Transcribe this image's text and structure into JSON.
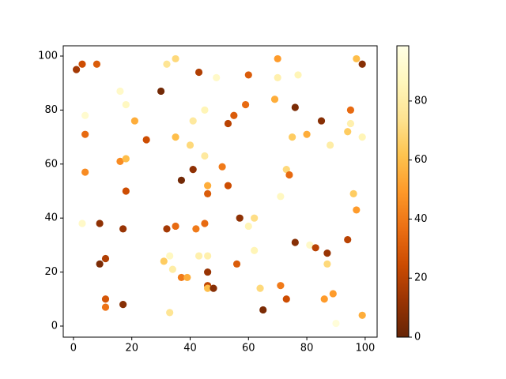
{
  "chart_data": {
    "type": "scatter",
    "x": [
      1,
      3,
      8,
      3,
      4,
      4,
      4,
      9,
      9,
      11,
      11,
      11,
      16,
      16,
      18,
      18,
      18,
      17,
      17,
      21,
      25,
      30,
      31,
      32,
      32,
      33,
      33,
      34,
      35,
      35,
      35,
      37,
      37,
      39,
      40,
      41,
      41,
      42,
      43,
      43,
      45,
      45,
      45,
      46,
      46,
      46,
      46,
      46,
      46,
      48,
      49,
      51,
      53,
      53,
      55,
      56,
      57,
      59,
      60,
      60,
      62,
      62,
      64,
      65,
      69,
      70,
      70,
      71,
      71,
      73,
      73,
      74,
      75,
      76,
      76,
      77,
      80,
      81,
      83,
      85,
      86,
      87,
      87,
      88,
      89,
      90,
      94,
      94,
      95,
      95,
      96,
      97,
      97,
      99,
      99,
      99
    ],
    "y": [
      95,
      97,
      97,
      38,
      78,
      71,
      57,
      38,
      23,
      25,
      10,
      7,
      87,
      61,
      82,
      62,
      50,
      36,
      8,
      76,
      69,
      87,
      24,
      97,
      36,
      26,
      5,
      21,
      99,
      70,
      37,
      54,
      18,
      18,
      67,
      76,
      58,
      36,
      94,
      26,
      80,
      63,
      38,
      52,
      49,
      26,
      20,
      15,
      14,
      14,
      92,
      59,
      75,
      52,
      78,
      23,
      40,
      82,
      93,
      37,
      40,
      28,
      14,
      6,
      84,
      99,
      92,
      48,
      15,
      58,
      10,
      56,
      70,
      81,
      31,
      93,
      71,
      30,
      29,
      76,
      10,
      27,
      23,
      67,
      12,
      1,
      32,
      72,
      80,
      75,
      49,
      43,
      99,
      97,
      70,
      4
    ],
    "color_values": [
      15,
      25,
      30,
      90,
      92,
      35,
      45,
      10,
      5,
      18,
      28,
      38,
      90,
      45,
      88,
      60,
      25,
      12,
      8,
      55,
      25,
      3,
      65,
      75,
      15,
      88,
      75,
      80,
      70,
      60,
      35,
      3,
      40,
      55,
      70,
      78,
      10,
      40,
      18,
      82,
      85,
      78,
      35,
      55,
      30,
      82,
      12,
      22,
      60,
      8,
      90,
      40,
      20,
      25,
      30,
      30,
      10,
      35,
      30,
      85,
      72,
      85,
      70,
      5,
      55,
      50,
      82,
      88,
      40,
      70,
      25,
      35,
      65,
      5,
      8,
      85,
      55,
      90,
      20,
      8,
      50,
      12,
      70,
      80,
      50,
      95,
      20,
      65,
      35,
      82,
      65,
      50,
      60,
      8,
      85,
      55
    ],
    "colormap": "YlOrBr_r",
    "clim": [
      0,
      98.7
    ],
    "cticks": [
      0,
      20,
      40,
      60,
      80
    ],
    "xlim": [
      -3.5,
      104.1
    ],
    "ylim": [
      -4.1,
      103.8
    ],
    "xticks": [
      0,
      20,
      40,
      60,
      80,
      100
    ],
    "yticks": [
      0,
      20,
      40,
      60,
      80,
      100
    ]
  }
}
